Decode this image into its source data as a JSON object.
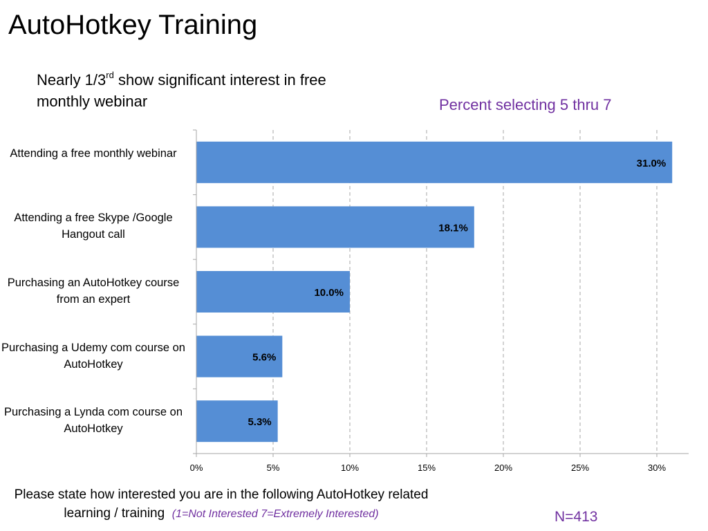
{
  "slide": {
    "title": "AutoHotkey Training",
    "subtitle_main": "Nearly 1/3",
    "subtitle_sup": "rd",
    "subtitle_rest": " show significant interest in free monthly webinar",
    "measure_note": "Percent selecting 5 thru 7",
    "question": "Please state how interested you are in the following AutoHotkey related learning / training",
    "scale_note": "(1=Not Interested     7=Extremely Interested)",
    "sample_size": "N=413"
  },
  "colors": {
    "bar": "#558ed5",
    "accent_text": "#7030a0",
    "gridline": "#a6a6a6",
    "axis": "#a6a6a6"
  },
  "chart_data": {
    "type": "bar",
    "orientation": "horizontal",
    "categories": [
      "Attending a free monthly webinar",
      "Attending a free Skype /Google Hangout call",
      "Purchasing an AutoHotkey course from an expert",
      "Purchasing a Udemy com course on AutoHotkey",
      "Purchasing a Lynda com course on AutoHotkey"
    ],
    "values": [
      31.0,
      18.1,
      10.0,
      5.6,
      5.3
    ],
    "data_labels": [
      "31.0%",
      "18.1%",
      "10.0%",
      "5.6%",
      "5.3%"
    ],
    "xlim": [
      0,
      32
    ],
    "xticks": [
      0,
      5,
      10,
      15,
      20,
      25,
      30
    ],
    "xtick_labels": [
      "0%",
      "5%",
      "10%",
      "15%",
      "20%",
      "25%",
      "30%"
    ],
    "grid": "vertical-dashed",
    "legend": "none"
  }
}
